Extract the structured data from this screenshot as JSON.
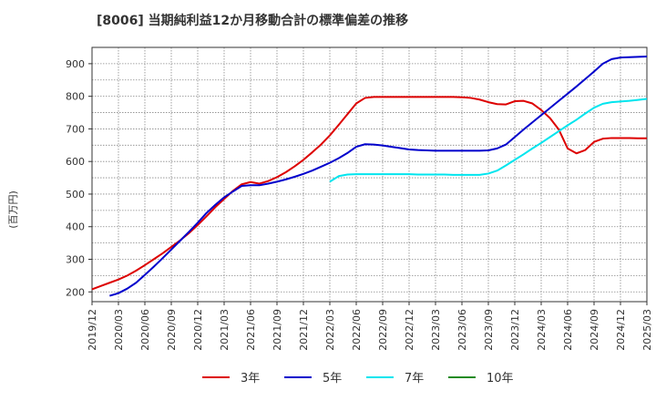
{
  "chart_data": {
    "type": "line",
    "title": "[8006]  当期純利益12か月移動合計の標準偏差の推移",
    "ylabel": "(百万円)",
    "xlabel": "",
    "ylim": [
      170,
      950
    ],
    "yticks": [
      200,
      300,
      400,
      500,
      600,
      700,
      800,
      900
    ],
    "x_start": "2019-12",
    "x_end": "2025-03",
    "xticks": [
      "2019/12",
      "2020/03",
      "2020/06",
      "2020/09",
      "2020/12",
      "2021/03",
      "2021/06",
      "2021/09",
      "2021/12",
      "2022/03",
      "2022/06",
      "2022/09",
      "2022/12",
      "2023/03",
      "2023/06",
      "2023/09",
      "2023/12",
      "2024/03",
      "2024/06",
      "2024/09",
      "2024/12",
      "2025/03"
    ],
    "grid": true,
    "legend_position": "bottom",
    "series": [
      {
        "name": "3年",
        "color": "#dd0000",
        "points": [
          [
            "2019/12",
            208
          ],
          [
            "2020/01",
            218
          ],
          [
            "2020/02",
            228
          ],
          [
            "2020/03",
            238
          ],
          [
            "2020/04",
            250
          ],
          [
            "2020/05",
            265
          ],
          [
            "2020/06",
            282
          ],
          [
            "2020/07",
            300
          ],
          [
            "2020/08",
            318
          ],
          [
            "2020/09",
            338
          ],
          [
            "2020/10",
            358
          ],
          [
            "2020/11",
            380
          ],
          [
            "2020/12",
            405
          ],
          [
            "2021/01",
            432
          ],
          [
            "2021/02",
            460
          ],
          [
            "2021/03",
            485
          ],
          [
            "2021/04",
            510
          ],
          [
            "2021/05",
            530
          ],
          [
            "2021/06",
            537
          ],
          [
            "2021/07",
            532
          ],
          [
            "2021/08",
            540
          ],
          [
            "2021/09",
            552
          ],
          [
            "2021/10",
            567
          ],
          [
            "2021/11",
            585
          ],
          [
            "2021/12",
            605
          ],
          [
            "2022/01",
            628
          ],
          [
            "2022/02",
            652
          ],
          [
            "2022/03",
            680
          ],
          [
            "2022/04",
            712
          ],
          [
            "2022/05",
            745
          ],
          [
            "2022/06",
            778
          ],
          [
            "2022/07",
            795
          ],
          [
            "2022/08",
            798
          ],
          [
            "2022/09",
            798
          ],
          [
            "2022/10",
            798
          ],
          [
            "2022/11",
            798
          ],
          [
            "2022/12",
            798
          ],
          [
            "2023/01",
            798
          ],
          [
            "2023/02",
            798
          ],
          [
            "2023/03",
            798
          ],
          [
            "2023/04",
            798
          ],
          [
            "2023/05",
            798
          ],
          [
            "2023/06",
            797
          ],
          [
            "2023/07",
            795
          ],
          [
            "2023/08",
            790
          ],
          [
            "2023/09",
            782
          ],
          [
            "2023/10",
            776
          ],
          [
            "2023/11",
            775
          ],
          [
            "2023/12",
            785
          ],
          [
            "2024/01",
            786
          ],
          [
            "2024/02",
            778
          ],
          [
            "2024/03",
            758
          ],
          [
            "2024/04",
            733
          ],
          [
            "2024/05",
            698
          ],
          [
            "2024/06",
            640
          ],
          [
            "2024/07",
            625
          ],
          [
            "2024/08",
            635
          ],
          [
            "2024/09",
            660
          ],
          [
            "2024/10",
            670
          ],
          [
            "2024/11",
            672
          ],
          [
            "2024/12",
            672
          ],
          [
            "2025/01",
            672
          ],
          [
            "2025/02",
            671
          ],
          [
            "2025/03",
            671
          ]
        ]
      },
      {
        "name": "5年",
        "color": "#0000cc",
        "points": [
          [
            "2020/02",
            188
          ],
          [
            "2020/03",
            196
          ],
          [
            "2020/04",
            210
          ],
          [
            "2020/05",
            228
          ],
          [
            "2020/06",
            252
          ],
          [
            "2020/07",
            277
          ],
          [
            "2020/08",
            303
          ],
          [
            "2020/09",
            330
          ],
          [
            "2020/10",
            357
          ],
          [
            "2020/11",
            384
          ],
          [
            "2020/12",
            412
          ],
          [
            "2021/01",
            442
          ],
          [
            "2021/02",
            467
          ],
          [
            "2021/03",
            490
          ],
          [
            "2021/04",
            508
          ],
          [
            "2021/05",
            525
          ],
          [
            "2021/06",
            527
          ],
          [
            "2021/07",
            527
          ],
          [
            "2021/08",
            532
          ],
          [
            "2021/09",
            538
          ],
          [
            "2021/10",
            545
          ],
          [
            "2021/11",
            553
          ],
          [
            "2021/12",
            562
          ],
          [
            "2022/01",
            572
          ],
          [
            "2022/02",
            584
          ],
          [
            "2022/03",
            596
          ],
          [
            "2022/04",
            610
          ],
          [
            "2022/05",
            626
          ],
          [
            "2022/06",
            645
          ],
          [
            "2022/07",
            653
          ],
          [
            "2022/08",
            652
          ],
          [
            "2022/09",
            649
          ],
          [
            "2022/10",
            645
          ],
          [
            "2022/11",
            641
          ],
          [
            "2022/12",
            637
          ],
          [
            "2023/01",
            635
          ],
          [
            "2023/02",
            634
          ],
          [
            "2023/03",
            633
          ],
          [
            "2023/04",
            633
          ],
          [
            "2023/05",
            633
          ],
          [
            "2023/06",
            633
          ],
          [
            "2023/07",
            633
          ],
          [
            "2023/08",
            633
          ],
          [
            "2023/09",
            634
          ],
          [
            "2023/10",
            640
          ],
          [
            "2023/11",
            652
          ],
          [
            "2023/12",
            675
          ],
          [
            "2024/01",
            698
          ],
          [
            "2024/02",
            720
          ],
          [
            "2024/03",
            742
          ],
          [
            "2024/04",
            764
          ],
          [
            "2024/05",
            786
          ],
          [
            "2024/06",
            808
          ],
          [
            "2024/07",
            830
          ],
          [
            "2024/08",
            853
          ],
          [
            "2024/09",
            876
          ],
          [
            "2024/10",
            900
          ],
          [
            "2024/11",
            914
          ],
          [
            "2024/12",
            919
          ],
          [
            "2025/01",
            920
          ],
          [
            "2025/02",
            921
          ],
          [
            "2025/03",
            922
          ]
        ]
      },
      {
        "name": "7年",
        "color": "#00e5ee",
        "points": [
          [
            "2022/03",
            538
          ],
          [
            "2022/04",
            555
          ],
          [
            "2022/05",
            560
          ],
          [
            "2022/06",
            561
          ],
          [
            "2022/07",
            561
          ],
          [
            "2022/08",
            561
          ],
          [
            "2022/09",
            561
          ],
          [
            "2022/10",
            561
          ],
          [
            "2022/11",
            561
          ],
          [
            "2022/12",
            561
          ],
          [
            "2023/01",
            560
          ],
          [
            "2023/02",
            560
          ],
          [
            "2023/03",
            560
          ],
          [
            "2023/04",
            560
          ],
          [
            "2023/05",
            559
          ],
          [
            "2023/06",
            559
          ],
          [
            "2023/07",
            559
          ],
          [
            "2023/08",
            559
          ],
          [
            "2023/09",
            563
          ],
          [
            "2023/10",
            572
          ],
          [
            "2023/11",
            588
          ],
          [
            "2023/12",
            605
          ],
          [
            "2024/01",
            622
          ],
          [
            "2024/02",
            640
          ],
          [
            "2024/03",
            657
          ],
          [
            "2024/04",
            675
          ],
          [
            "2024/05",
            693
          ],
          [
            "2024/06",
            711
          ],
          [
            "2024/07",
            728
          ],
          [
            "2024/08",
            747
          ],
          [
            "2024/09",
            765
          ],
          [
            "2024/10",
            777
          ],
          [
            "2024/11",
            782
          ],
          [
            "2024/12",
            784
          ],
          [
            "2025/01",
            786
          ],
          [
            "2025/02",
            789
          ],
          [
            "2025/03",
            792
          ]
        ]
      },
      {
        "name": "10年",
        "color": "#228b22",
        "points": []
      }
    ]
  }
}
